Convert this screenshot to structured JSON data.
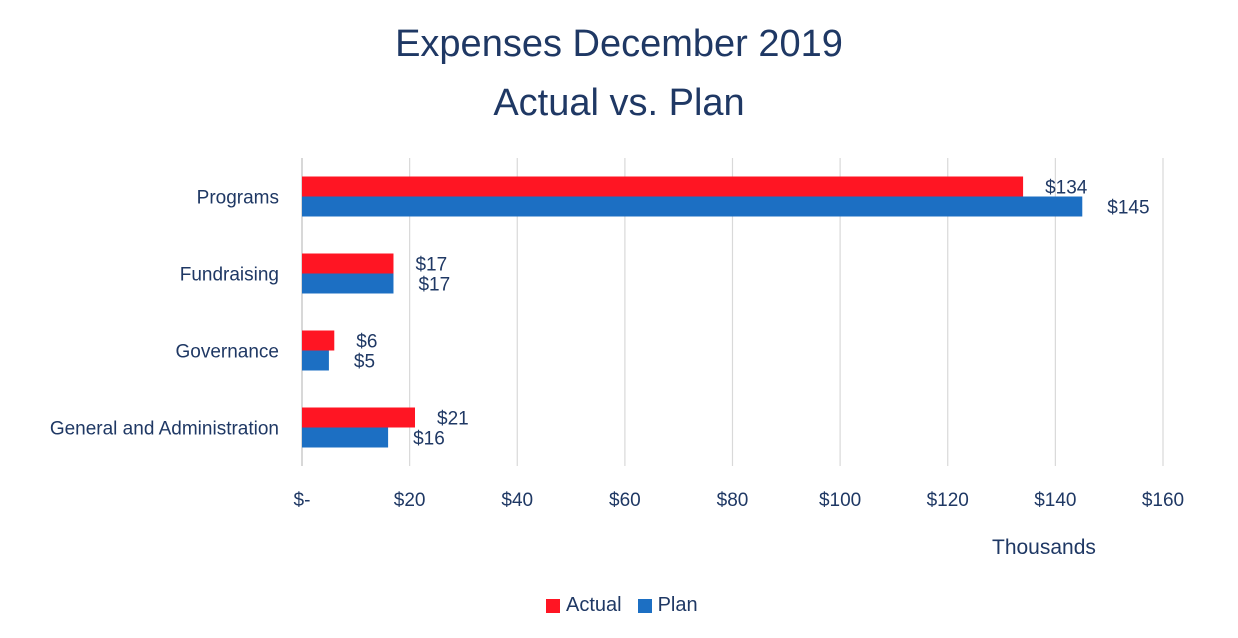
{
  "chart_data": {
    "type": "bar",
    "orientation": "horizontal",
    "title": "Expenses December 2019",
    "subtitle": "Actual vs. Plan",
    "xlabel": "Thousands",
    "ylabel": "",
    "categories": [
      "Programs",
      "Fundraising",
      "Governance",
      "General and Administration"
    ],
    "series": [
      {
        "name": "Actual",
        "color": "#ff1523",
        "values": [
          134,
          17,
          6,
          21
        ],
        "labels": [
          "$134",
          "$17",
          "$6",
          "$21"
        ]
      },
      {
        "name": "Plan",
        "color": "#1c6fc3",
        "values": [
          145,
          17,
          5,
          16
        ],
        "labels": [
          "$145",
          "$17",
          "$5",
          "$16"
        ]
      }
    ],
    "xlim": [
      0,
      160
    ],
    "xticks": [
      0,
      20,
      40,
      60,
      80,
      100,
      120,
      140,
      160
    ],
    "xtick_labels": [
      "$-",
      "$20",
      "$40",
      "$60",
      "$80",
      "$100",
      "$120",
      "$140",
      "$160"
    ],
    "grid": true,
    "legend": "bottom"
  }
}
